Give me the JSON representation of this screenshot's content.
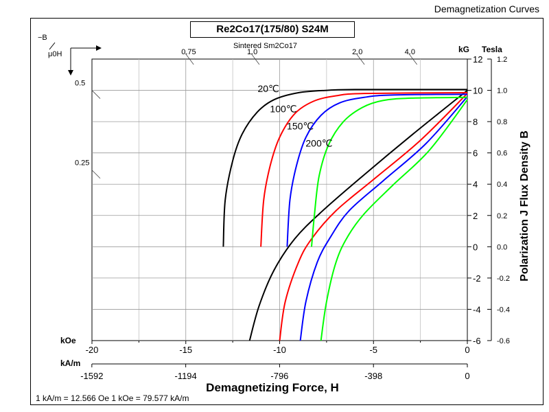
{
  "page": {
    "corner_title": "Demagnetization Curves",
    "grade": "Re2Co17(175/80) S24M",
    "subtitle": "Sintered Sm2Co17",
    "footnote": "1 kA/m = 12.566 Oe   1 kOe = 79.577 kA/m"
  },
  "chart_data": {
    "type": "line",
    "xlabel": "Demagnetizing Force, H",
    "ylabel": "Polarization J Flux Density B",
    "x_unit_koe": "kOe",
    "x_unit_kam": "kA/m",
    "y_unit_kg": "kG",
    "y_unit_tesla": "Tesla",
    "xlim": [
      -20,
      0
    ],
    "ylim": [
      -6,
      12
    ],
    "grid": true,
    "x_ticks_koe": [
      "-20",
      "-15",
      "-10",
      "-5",
      "0"
    ],
    "x_ticks_kam": [
      "-1592",
      "-1194",
      "-796",
      "-398",
      "0"
    ],
    "y_ticks_kg": [
      "12",
      "10",
      "8",
      "6",
      "4",
      "2",
      "0",
      "-2",
      "-4",
      "-6"
    ],
    "y_ticks_tesla": [
      "1.2",
      "1.0",
      "0.8",
      "0.6",
      "0.4",
      "0.2",
      "0.0",
      "-0.2",
      "-0.4",
      "-0.6"
    ],
    "permeance_label": [
      "−B",
      "μ0H"
    ],
    "permeance_lines": [
      {
        "label": "0.75",
        "x": -14.8,
        "y": 12
      },
      {
        "label": "1.0",
        "x": -11.3,
        "y": 12
      },
      {
        "label": "2.0",
        "x": -5.7,
        "y": 12
      },
      {
        "label": "4.0",
        "x": -2.9,
        "y": 12
      },
      {
        "label": "0.5",
        "x": -20,
        "y": 10
      },
      {
        "label": "0.25",
        "x": -20,
        "y": 4.9
      }
    ],
    "series": [
      {
        "name": "20℃",
        "color": "#000000",
        "J": [
          [
            -13.0,
            0
          ],
          [
            -12.9,
            3
          ],
          [
            -12.5,
            5.5
          ],
          [
            -12.0,
            7.2
          ],
          [
            -11.2,
            8.6
          ],
          [
            -10.3,
            9.4
          ],
          [
            -9.0,
            9.85
          ],
          [
            -7.5,
            10.0
          ],
          [
            -6.0,
            10.05
          ],
          [
            0,
            10.05
          ]
        ],
        "B": [
          [
            -11.6,
            -6
          ],
          [
            -11.1,
            -3.8
          ],
          [
            -10.3,
            -1.5
          ],
          [
            -9.2,
            0.5
          ],
          [
            -7.8,
            2.2
          ],
          [
            -5.5,
            4.6
          ],
          [
            -2.9,
            7.2
          ],
          [
            0,
            10.0
          ]
        ]
      },
      {
        "name": "100℃",
        "color": "#ff0000",
        "J": [
          [
            -11.0,
            0
          ],
          [
            -10.85,
            3
          ],
          [
            -10.5,
            5.2
          ],
          [
            -10.0,
            7.0
          ],
          [
            -9.2,
            8.5
          ],
          [
            -8.2,
            9.3
          ],
          [
            -7.0,
            9.65
          ],
          [
            -5.5,
            9.8
          ],
          [
            0,
            9.85
          ]
        ],
        "B": [
          [
            -10.0,
            -6
          ],
          [
            -9.7,
            -3.5
          ],
          [
            -9.0,
            -1.0
          ],
          [
            -8.3,
            0.5
          ],
          [
            -7.0,
            2.3
          ],
          [
            -5.0,
            4.3
          ],
          [
            -2.5,
            6.8
          ],
          [
            0,
            9.8
          ]
        ]
      },
      {
        "name": "150℃",
        "color": "#0000ff",
        "J": [
          [
            -9.6,
            0
          ],
          [
            -9.45,
            3
          ],
          [
            -9.1,
            5.2
          ],
          [
            -8.6,
            7.0
          ],
          [
            -7.8,
            8.4
          ],
          [
            -6.8,
            9.2
          ],
          [
            -5.5,
            9.55
          ],
          [
            -4.0,
            9.7
          ],
          [
            0,
            9.75
          ]
        ],
        "B": [
          [
            -8.9,
            -6
          ],
          [
            -8.6,
            -3.5
          ],
          [
            -8.0,
            -1.0
          ],
          [
            -7.3,
            0.6
          ],
          [
            -6.3,
            2.3
          ],
          [
            -4.5,
            4.2
          ],
          [
            -2.2,
            6.6
          ],
          [
            0,
            9.6
          ]
        ]
      },
      {
        "name": "200℃",
        "color": "#00ff00",
        "J": [
          [
            -8.3,
            0
          ],
          [
            -8.15,
            2
          ],
          [
            -7.9,
            4.5
          ],
          [
            -7.4,
            6.5
          ],
          [
            -6.6,
            8.0
          ],
          [
            -5.6,
            8.9
          ],
          [
            -4.5,
            9.35
          ],
          [
            -3.0,
            9.5
          ],
          [
            0,
            9.55
          ]
        ],
        "B": [
          [
            -7.8,
            -6
          ],
          [
            -7.5,
            -3.5
          ],
          [
            -7.0,
            -1.0
          ],
          [
            -6.4,
            0.6
          ],
          [
            -5.5,
            2.1
          ],
          [
            -4.0,
            3.9
          ],
          [
            -2.0,
            6.2
          ],
          [
            0,
            9.4
          ]
        ]
      }
    ]
  }
}
